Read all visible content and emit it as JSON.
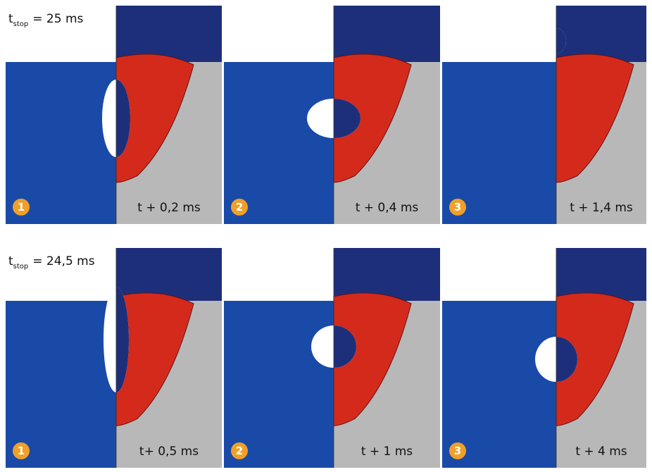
{
  "rows": [
    {
      "stop_label": {
        "symbol": "t",
        "subscript": "stop",
        "text": "= 25 ms"
      },
      "panels": [
        {
          "badge": "1",
          "time": "t + 0,2 ms"
        },
        {
          "badge": "2",
          "time": "t + 0,4 ms"
        },
        {
          "badge": "3",
          "time": "t + 1,4 ms"
        }
      ]
    },
    {
      "stop_label": {
        "symbol": "t",
        "subscript": "stop",
        "text": "= 24,5 ms"
      },
      "panels": [
        {
          "badge": "1",
          "time": "t+ 0,5 ms"
        },
        {
          "badge": "2",
          "time": "t + 1 ms"
        },
        {
          "badge": "3",
          "time": "t + 4 ms"
        }
      ]
    }
  ]
}
